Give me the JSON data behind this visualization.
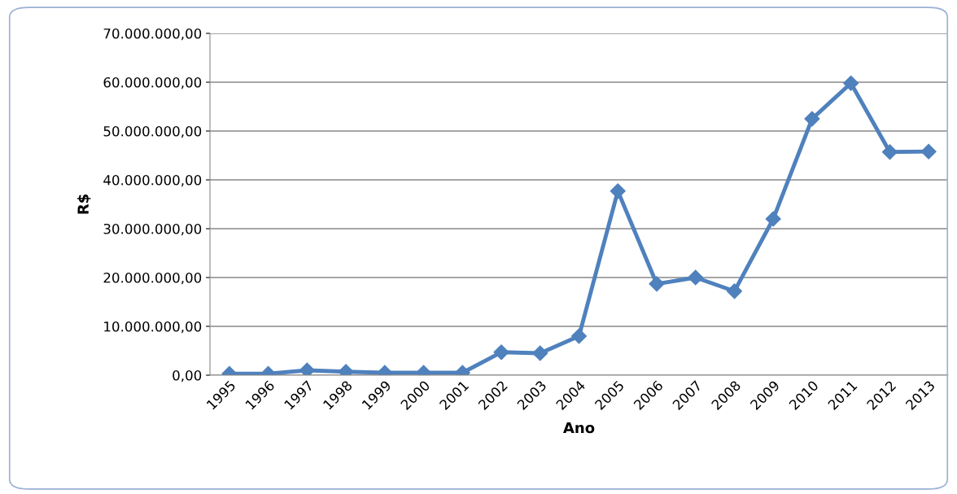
{
  "chart_data": {
    "type": "line",
    "xlabel": "Ano",
    "ylabel": "R$",
    "categories": [
      "1995",
      "1996",
      "1997",
      "1998",
      "1999",
      "2000",
      "2001",
      "2002",
      "2003",
      "2004",
      "2005",
      "2006",
      "2007",
      "2008",
      "2009",
      "2010",
      "2011",
      "2012",
      "2013"
    ],
    "series": [
      {
        "color": "#4f81bd",
        "values": [
          300000,
          300000,
          1000000,
          700000,
          500000,
          500000,
          500000,
          4700000,
          4500000,
          8000000,
          37700000,
          18700000,
          20000000,
          17200000,
          32000000,
          52500000,
          59800000,
          45700000,
          45800000
        ]
      }
    ],
    "ylim": [
      0,
      70000000
    ],
    "yticks": [
      {
        "value": 0,
        "label": "0,00"
      },
      {
        "value": 10000000,
        "label": "10.000.000,00"
      },
      {
        "value": 20000000,
        "label": "20.000.000,00"
      },
      {
        "value": 30000000,
        "label": "30.000.000,00"
      },
      {
        "value": 40000000,
        "label": "40.000.000,00"
      },
      {
        "value": 50000000,
        "label": "50.000.000,00"
      },
      {
        "value": 60000000,
        "label": "60.000.000,00"
      },
      {
        "value": 70000000,
        "label": "70.000.000,00"
      }
    ],
    "grid": "y",
    "marker": "diamond",
    "line_style": "solid"
  }
}
